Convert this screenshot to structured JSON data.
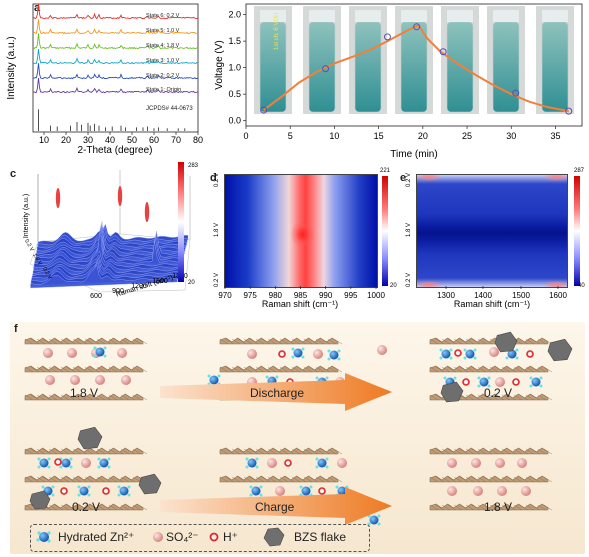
{
  "panels": {
    "a": {
      "label": "a",
      "ylabel": "Intensity (a.u.)",
      "xlabel": "2-Theta (degree)",
      "xticks": [
        "10",
        "20",
        "30",
        "40",
        "50",
        "60",
        "70",
        "80"
      ],
      "states": [
        {
          "name": "State 6: 0.2 V",
          "color": "#e8302a"
        },
        {
          "name": "State 5: 1.0 V",
          "color": "#f39a1e"
        },
        {
          "name": "State 4: 1.8 V",
          "color": "#6cc124"
        },
        {
          "name": "State 3: 1.0 V",
          "color": "#14a8c8"
        },
        {
          "name": "State 2: 0.2 V",
          "color": "#2a4fbf"
        },
        {
          "name": "State 1: Origin",
          "color": "#6a3aa0"
        }
      ],
      "reference": "JCPDS# 44-0673"
    },
    "b": {
      "label": "b",
      "ylabel": "Voltage (V)",
      "xlabel": "Time (min)",
      "xticks": [
        "0",
        "5",
        "10",
        "15",
        "20",
        "25",
        "30",
        "35"
      ],
      "yticks": [
        "0.0",
        "0.5",
        "1.0",
        "1.5",
        "2.0"
      ],
      "vial_text": "1st ch. 6 VOH"
    },
    "c": {
      "label": "c",
      "ylabel": "Intensity (a.u.)",
      "xlabel": "Raman shift (cm⁻¹)",
      "xticks": [
        "600",
        "900",
        "1200",
        "1500",
        "1800"
      ],
      "vticks": [
        "0.2 V",
        "1.8 V",
        "0.2 V"
      ],
      "scale_max": "283",
      "scale_min": "20"
    },
    "d": {
      "label": "d",
      "xlabel": "Raman shift (cm⁻¹)",
      "xticks": [
        "970",
        "975",
        "980",
        "985",
        "990",
        "995",
        "1000"
      ],
      "yticks": [
        "0.2 V",
        "1.8 V",
        "0.2 V"
      ],
      "scale_max": "221",
      "scale_min": "20"
    },
    "e": {
      "label": "e",
      "xlabel": "Raman shift (cm⁻¹)",
      "xticks": [
        "1300",
        "1400",
        "1500",
        "1600"
      ],
      "yticks": [
        "0.2 V",
        "1.8 V",
        "0.2 V"
      ],
      "scale_max": "287",
      "scale_min": "40"
    },
    "f": {
      "label": "f",
      "v_top_left": "1.8 V",
      "v_top_right": "0.2 V",
      "v_bottom_left": "0.2 V",
      "v_bottom_right": "1.8 V",
      "discharge": "Discharge",
      "charge": "Charge",
      "legend": {
        "zn": "Hydrated Zn²⁺",
        "so4": "SO₄²⁻",
        "h": "H⁺",
        "bzs": "BZS flake"
      }
    }
  },
  "chart_data": [
    {
      "type": "line",
      "panel": "a",
      "title": "",
      "xlabel": "2-Theta (degree)",
      "ylabel": "Intensity (a.u.)",
      "xlim": [
        5,
        80
      ],
      "series": [
        {
          "name": "State 6: 0.2 V"
        },
        {
          "name": "State 5: 1.0 V"
        },
        {
          "name": "State 4: 1.8 V"
        },
        {
          "name": "State 3: 1.0 V"
        },
        {
          "name": "State 2: 0.2 V"
        },
        {
          "name": "State 1: Origin"
        }
      ]
    },
    {
      "type": "line",
      "panel": "b",
      "title": "",
      "xlabel": "Time (min)",
      "ylabel": "Voltage (V)",
      "xlim": [
        0,
        38
      ],
      "ylim": [
        -0.1,
        2.2
      ],
      "series": [
        {
          "x": [
            2,
            4,
            6,
            8,
            10,
            12,
            14,
            16,
            18,
            19.5,
            20.5,
            22,
            24,
            26,
            28,
            30,
            32,
            34,
            36.5
          ],
          "values": [
            0.2,
            0.45,
            0.72,
            0.92,
            1.08,
            1.2,
            1.33,
            1.5,
            1.68,
            1.8,
            1.55,
            1.3,
            1.07,
            0.86,
            0.67,
            0.5,
            0.36,
            0.26,
            0.18
          ]
        }
      ],
      "markers": {
        "x": [
          2,
          9,
          16,
          19.3,
          22.3,
          30.5,
          36.5
        ],
        "values": [
          0.2,
          0.98,
          1.58,
          1.77,
          1.3,
          0.52,
          0.18
        ]
      }
    }
  ]
}
